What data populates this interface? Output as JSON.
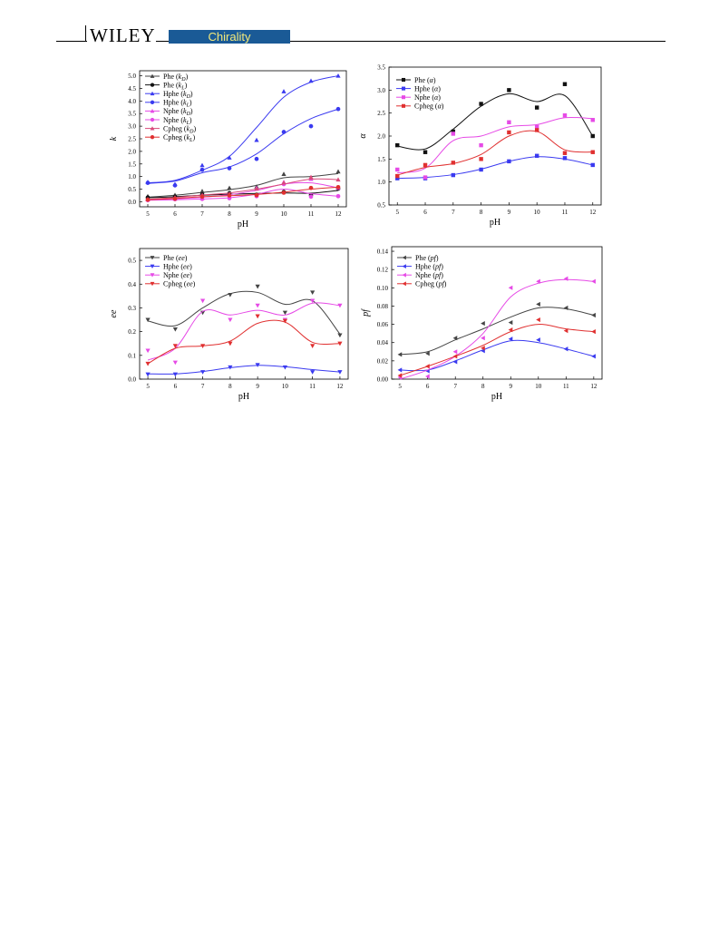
{
  "header": {
    "publisher": "WILEY",
    "journal": "Chirality",
    "journal_bg": "#1a5a96",
    "journal_color": "#f4e97a"
  },
  "chart_data": [
    {
      "type": "scatter",
      "id": "k",
      "xlabel": "pH",
      "ylabel": "k",
      "x": [
        5,
        6,
        7,
        8,
        9,
        10,
        11,
        12
      ],
      "xlim": [
        4.7,
        12.3
      ],
      "ylim": [
        -0.2,
        5.2
      ],
      "xticks": [
        "5",
        "6",
        "7",
        "8",
        "9",
        "10",
        "11",
        "12"
      ],
      "yticks": [
        "0.0",
        "0.5",
        "1.0",
        "1.5",
        "2.0",
        "2.5",
        "3.0",
        "3.5",
        "4.0",
        "4.5",
        "5.0"
      ],
      "legend_position": "top-left",
      "series": [
        {
          "name": "Phe (k_D)",
          "color": "#444444",
          "marker": "triangle-up",
          "values": [
            0.22,
            0.27,
            0.42,
            0.55,
            0.6,
            1.1,
            0.9,
            1.2
          ],
          "fit": [
            0.18,
            0.26,
            0.37,
            0.48,
            0.65,
            0.95,
            1.0,
            1.12
          ]
        },
        {
          "name": "Phe (k_L)",
          "color": "#111111",
          "marker": "circle",
          "values": [
            0.17,
            0.2,
            0.29,
            0.34,
            0.28,
            0.39,
            0.27,
            0.52
          ],
          "fit": [
            0.16,
            0.2,
            0.26,
            0.3,
            0.33,
            0.35,
            0.34,
            0.45
          ]
        },
        {
          "name": "Hphe (k_D)",
          "color": "#3a3af0",
          "marker": "triangle-up",
          "values": [
            0.78,
            0.7,
            1.45,
            1.75,
            2.45,
            4.38,
            4.8,
            5.0
          ],
          "fit": [
            0.75,
            0.85,
            1.25,
            1.8,
            2.95,
            4.15,
            4.75,
            5.0
          ]
        },
        {
          "name": "Hphe (k_L)",
          "color": "#3a3af0",
          "marker": "circle",
          "values": [
            0.75,
            0.65,
            1.27,
            1.33,
            1.7,
            2.77,
            3.0,
            3.68
          ],
          "fit": [
            0.73,
            0.82,
            1.15,
            1.38,
            1.9,
            2.7,
            3.3,
            3.68
          ]
        },
        {
          "name": "Nphe (k_D)",
          "color": "#e64ae6",
          "marker": "triangle-up",
          "values": [
            0.1,
            0.12,
            0.14,
            0.22,
            0.55,
            0.78,
            0.9,
            0.55
          ],
          "fit": [
            0.08,
            0.12,
            0.18,
            0.28,
            0.45,
            0.7,
            0.75,
            0.55
          ]
        },
        {
          "name": "Nphe (k_L)",
          "color": "#e64ae6",
          "marker": "circle",
          "values": [
            0.06,
            0.1,
            0.11,
            0.14,
            0.22,
            0.7,
            0.2,
            0.22
          ],
          "fit": [
            0.06,
            0.08,
            0.11,
            0.16,
            0.3,
            0.5,
            0.32,
            0.22
          ]
        },
        {
          "name": "Cpheg (k_D)",
          "color": "#d94a7a",
          "marker": "triangle-up",
          "values": [
            0.1,
            0.17,
            0.27,
            0.3,
            0.52,
            0.76,
            0.98,
            0.88
          ],
          "fit": [
            0.1,
            0.17,
            0.27,
            0.35,
            0.5,
            0.7,
            0.9,
            0.88
          ]
        },
        {
          "name": "Cpheg (k_L)",
          "color": "#e03030",
          "marker": "circle",
          "values": [
            0.08,
            0.12,
            0.2,
            0.25,
            0.26,
            0.36,
            0.55,
            0.58
          ],
          "fit": [
            0.08,
            0.13,
            0.2,
            0.24,
            0.29,
            0.38,
            0.5,
            0.58
          ]
        }
      ]
    },
    {
      "type": "scatter",
      "id": "alpha",
      "xlabel": "pH",
      "ylabel": "α",
      "x": [
        5,
        6,
        7,
        8,
        9,
        10,
        11,
        12
      ],
      "xlim": [
        4.7,
        12.3
      ],
      "ylim": [
        0.5,
        3.5
      ],
      "xticks": [
        "5",
        "6",
        "7",
        "8",
        "9",
        "10",
        "11",
        "12"
      ],
      "yticks": [
        "0.5",
        "1.0",
        "1.5",
        "2.0",
        "2.5",
        "3.0",
        "3.5"
      ],
      "legend_position": "top-left",
      "series": [
        {
          "name": "Phe (α)",
          "color": "#111111",
          "marker": "square",
          "values": [
            1.8,
            1.65,
            2.1,
            2.7,
            3.0,
            2.62,
            3.13,
            2.0
          ],
          "fit": [
            1.78,
            1.72,
            2.15,
            2.65,
            2.92,
            2.75,
            2.88,
            2.0
          ]
        },
        {
          "name": "Hphe (α)",
          "color": "#3a3af0",
          "marker": "square",
          "values": [
            1.08,
            1.08,
            1.15,
            1.27,
            1.45,
            1.57,
            1.52,
            1.37
          ],
          "fit": [
            1.08,
            1.1,
            1.16,
            1.28,
            1.45,
            1.55,
            1.5,
            1.37
          ]
        },
        {
          "name": "Nphe (α)",
          "color": "#e64ae6",
          "marker": "square",
          "values": [
            1.27,
            1.1,
            2.05,
            1.8,
            2.3,
            2.2,
            2.45,
            2.35
          ],
          "fit": [
            1.2,
            1.3,
            1.9,
            2.0,
            2.2,
            2.25,
            2.4,
            2.38
          ]
        },
        {
          "name": "Cpheg (α)",
          "color": "#e03030",
          "marker": "square",
          "values": [
            1.13,
            1.37,
            1.42,
            1.5,
            2.08,
            2.13,
            1.63,
            1.65
          ],
          "fit": [
            1.15,
            1.32,
            1.4,
            1.6,
            2.0,
            2.1,
            1.7,
            1.65
          ]
        }
      ]
    },
    {
      "type": "scatter",
      "id": "ee",
      "xlabel": "pH",
      "ylabel": "ee",
      "x": [
        5,
        6,
        7,
        8,
        9,
        10,
        11,
        12
      ],
      "xlim": [
        4.7,
        12.3
      ],
      "ylim": [
        0.0,
        0.55
      ],
      "xticks": [
        "5",
        "6",
        "7",
        "8",
        "9",
        "10",
        "11",
        "12"
      ],
      "yticks": [
        "0.0",
        "0.1",
        "0.2",
        "0.3",
        "0.4",
        "0.5"
      ],
      "legend_position": "top-left",
      "series": [
        {
          "name": "Phe (ee)",
          "color": "#444444",
          "marker": "triangle-down",
          "values": [
            0.25,
            0.21,
            0.28,
            0.355,
            0.39,
            0.28,
            0.365,
            0.185
          ],
          "fit": [
            0.245,
            0.225,
            0.3,
            0.36,
            0.365,
            0.315,
            0.33,
            0.19
          ]
        },
        {
          "name": "Hphe (ee)",
          "color": "#3a3af0",
          "marker": "triangle-down",
          "values": [
            0.02,
            0.02,
            0.03,
            0.05,
            0.06,
            0.05,
            0.03,
            0.03
          ],
          "fit": [
            0.022,
            0.022,
            0.032,
            0.048,
            0.058,
            0.052,
            0.04,
            0.03
          ]
        },
        {
          "name": "Nphe (ee)",
          "color": "#e64ae6",
          "marker": "triangle-down",
          "values": [
            0.12,
            0.07,
            0.33,
            0.25,
            0.31,
            0.25,
            0.33,
            0.31
          ],
          "fit": [
            0.08,
            0.13,
            0.285,
            0.27,
            0.29,
            0.27,
            0.32,
            0.31
          ]
        },
        {
          "name": "Cpheg (ee)",
          "color": "#e03030",
          "marker": "triangle-down",
          "values": [
            0.065,
            0.14,
            0.14,
            0.15,
            0.265,
            0.245,
            0.14,
            0.15
          ],
          "fit": [
            0.065,
            0.13,
            0.14,
            0.16,
            0.235,
            0.24,
            0.155,
            0.15
          ]
        }
      ]
    },
    {
      "type": "scatter",
      "id": "pf",
      "xlabel": "pH",
      "ylabel": "pf",
      "x": [
        5,
        6,
        7,
        8,
        9,
        10,
        11,
        12
      ],
      "xlim": [
        4.7,
        12.3
      ],
      "ylim": [
        0.0,
        0.145
      ],
      "xticks": [
        "5",
        "6",
        "7",
        "8",
        "9",
        "10",
        "11",
        "12"
      ],
      "yticks": [
        "0.00",
        "0.02",
        "0.04",
        "0.06",
        "0.08",
        "0.10",
        "0.12",
        "0.14"
      ],
      "legend_position": "top-left",
      "series": [
        {
          "name": "Phe (pf)",
          "color": "#444444",
          "marker": "triangle-left",
          "values": [
            0.027,
            0.028,
            0.045,
            0.061,
            0.062,
            0.082,
            0.078,
            0.07
          ],
          "fit": [
            0.027,
            0.03,
            0.043,
            0.055,
            0.068,
            0.078,
            0.077,
            0.07
          ]
        },
        {
          "name": "Hphe (pf)",
          "color": "#3a3af0",
          "marker": "triangle-left",
          "values": [
            0.01,
            0.009,
            0.019,
            0.031,
            0.044,
            0.043,
            0.033,
            0.025
          ],
          "fit": [
            0.01,
            0.01,
            0.02,
            0.032,
            0.042,
            0.04,
            0.033,
            0.025
          ]
        },
        {
          "name": "Nphe (pf)",
          "color": "#e64ae6",
          "marker": "triangle-left",
          "values": [
            0.002,
            0.003,
            0.03,
            0.045,
            0.1,
            0.107,
            0.11,
            0.107
          ],
          "fit": [
            0.0,
            0.01,
            0.025,
            0.05,
            0.09,
            0.105,
            0.109,
            0.107
          ]
        },
        {
          "name": "Cpheg (pf)",
          "color": "#e03030",
          "marker": "triangle-left",
          "values": [
            0.004,
            0.014,
            0.025,
            0.034,
            0.054,
            0.065,
            0.053,
            0.052
          ],
          "fit": [
            0.004,
            0.014,
            0.025,
            0.037,
            0.052,
            0.06,
            0.055,
            0.052
          ]
        }
      ]
    }
  ]
}
